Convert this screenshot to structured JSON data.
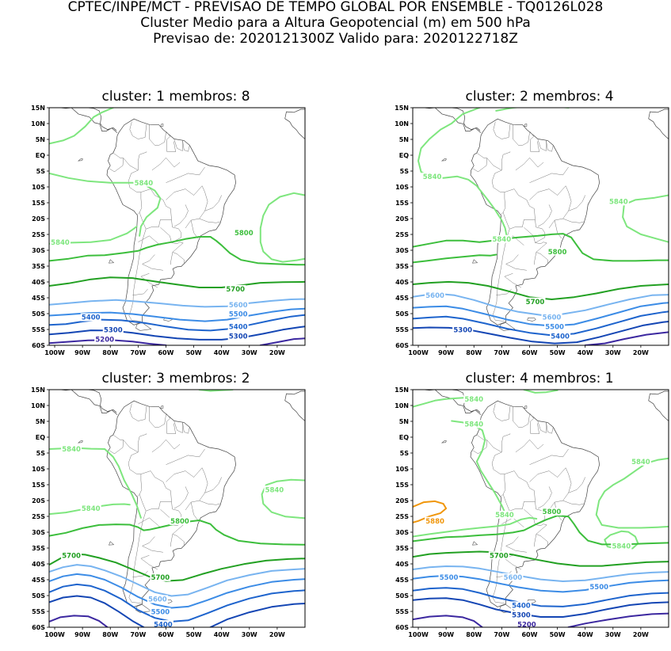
{
  "header": {
    "line1": "CPTEC/INPE/MCT - PREVISAO DE TEMPO GLOBAL POR ENSEMBLE - TQ0126L028",
    "line2": "Cluster Medio para a Altura Geopotencial (m) em 500 hPa",
    "line3": "Previsao de: 2020121300Z   Valido para: 2020122718Z"
  },
  "axes": {
    "y_ticks": [
      "15N",
      "10N",
      "5N",
      "EQ",
      "5S",
      "10S",
      "15S",
      "20S",
      "25S",
      "30S",
      "35S",
      "40S",
      "45S",
      "50S",
      "55S",
      "60S"
    ],
    "x_ticks": [
      "100W",
      "90W",
      "80W",
      "70W",
      "60W",
      "50W",
      "40W",
      "30W",
      "20W"
    ]
  },
  "contour_colors": {
    "5880": "#f0960a",
    "5840": "#7ee67e",
    "5800": "#3cbe3c",
    "5700": "#22a022",
    "5600": "#78b4f0",
    "5500": "#3c8ce6",
    "5400": "#1e64cd",
    "5300": "#1446b4",
    "5200": "#3c28a0"
  },
  "panels": [
    {
      "title": "cluster: 1   membros: 8",
      "labels": [
        {
          "text": "5840",
          "level": "5840",
          "lon": -68,
          "lat": -8
        },
        {
          "text": "5840",
          "level": "5840",
          "lon": -98,
          "lat": -27
        },
        {
          "text": "5800",
          "level": "5800",
          "lon": -32,
          "lat": -24
        },
        {
          "text": "5700",
          "level": "5700",
          "lon": -35,
          "lat": -42
        },
        {
          "text": "5600",
          "level": "5600",
          "lon": -34,
          "lat": -47
        },
        {
          "text": "5500",
          "level": "5500",
          "lon": -34,
          "lat": -50
        },
        {
          "text": "5400",
          "level": "5400",
          "lon": -87,
          "lat": -51
        },
        {
          "text": "5400",
          "level": "5400",
          "lon": -34,
          "lat": -54
        },
        {
          "text": "5300",
          "level": "5300",
          "lon": -79,
          "lat": -55
        },
        {
          "text": "5300",
          "level": "5300",
          "lon": -34,
          "lat": -57
        },
        {
          "text": "5200",
          "level": "5200",
          "lon": -82,
          "lat": -58
        }
      ]
    },
    {
      "title": "cluster: 2   membros: 4",
      "labels": [
        {
          "text": "5840",
          "level": "5840",
          "lon": -95,
          "lat": -6
        },
        {
          "text": "5840",
          "level": "5840",
          "lon": -28,
          "lat": -14
        },
        {
          "text": "5840",
          "level": "5840",
          "lon": -70,
          "lat": -26
        },
        {
          "text": "5800",
          "level": "5800",
          "lon": -50,
          "lat": -30
        },
        {
          "text": "5700",
          "level": "5700",
          "lon": -58,
          "lat": -46
        },
        {
          "text": "5600",
          "level": "5600",
          "lon": -94,
          "lat": -44
        },
        {
          "text": "5600",
          "level": "5600",
          "lon": -52,
          "lat": -51
        },
        {
          "text": "5500",
          "level": "5500",
          "lon": -51,
          "lat": -54
        },
        {
          "text": "5400",
          "level": "5400",
          "lon": -49,
          "lat": -57
        },
        {
          "text": "5300",
          "level": "5300",
          "lon": -84,
          "lat": -55
        }
      ]
    },
    {
      "title": "cluster: 3   membros: 2",
      "labels": [
        {
          "text": "5840",
          "level": "5840",
          "lon": -94,
          "lat": -3
        },
        {
          "text": "5840",
          "level": "5840",
          "lon": -21,
          "lat": -16
        },
        {
          "text": "5840",
          "level": "5840",
          "lon": -87,
          "lat": -22
        },
        {
          "text": "5800",
          "level": "5800",
          "lon": -55,
          "lat": -26
        },
        {
          "text": "5700",
          "level": "5700",
          "lon": -94,
          "lat": -37
        },
        {
          "text": "5700",
          "level": "5700",
          "lon": -62,
          "lat": -44
        },
        {
          "text": "5600",
          "level": "5600",
          "lon": -63,
          "lat": -51
        },
        {
          "text": "5500",
          "level": "5500",
          "lon": -62,
          "lat": -55
        },
        {
          "text": "5400",
          "level": "5400",
          "lon": -61,
          "lat": -59
        }
      ]
    },
    {
      "title": "cluster: 4   membros: 1",
      "labels": [
        {
          "text": "5840",
          "level": "5840",
          "lon": -80,
          "lat": 13
        },
        {
          "text": "5840",
          "level": "5840",
          "lon": -80,
          "lat": 5
        },
        {
          "text": "5840",
          "level": "5840",
          "lon": -20,
          "lat": -7
        },
        {
          "text": "5840",
          "level": "5840",
          "lon": -69,
          "lat": -24
        },
        {
          "text": "5840",
          "level": "5840",
          "lon": -27,
          "lat": -34
        },
        {
          "text": "5880",
          "level": "5880",
          "lon": -94,
          "lat": -26
        },
        {
          "text": "5800",
          "level": "5800",
          "lon": -52,
          "lat": -23
        },
        {
          "text": "5700",
          "level": "5700",
          "lon": -71,
          "lat": -37
        },
        {
          "text": "5600",
          "level": "5600",
          "lon": -66,
          "lat": -44
        },
        {
          "text": "5500",
          "level": "5500",
          "lon": -89,
          "lat": -44
        },
        {
          "text": "5500",
          "level": "5500",
          "lon": -35,
          "lat": -47
        },
        {
          "text": "5400",
          "level": "5400",
          "lon": -63,
          "lat": -53
        },
        {
          "text": "5300",
          "level": "5300",
          "lon": -63,
          "lat": -56
        },
        {
          "text": "5200",
          "level": "5200",
          "lon": -61,
          "lat": -59
        }
      ]
    }
  ]
}
